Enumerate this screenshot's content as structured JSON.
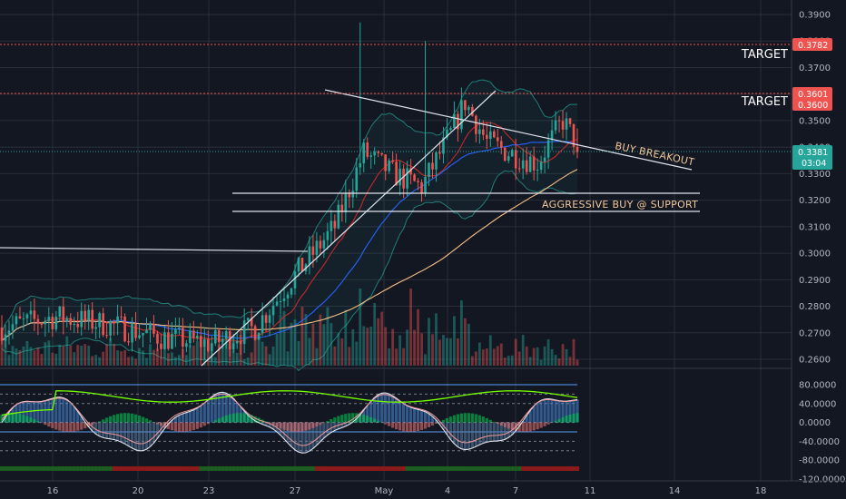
{
  "colors": {
    "background": "#131722",
    "grid": "#2a2e39",
    "up": "#26a69a",
    "down": "#ef5350",
    "target_line": "#ef5350",
    "trend_line": "#ffffff",
    "bollinger": "#26a69a",
    "ema_red": "#c62828",
    "ema_blue": "#2962ff",
    "sma_orange": "#f5c084",
    "annotation_text": "#f0c89a",
    "price_tag_current": "#26a69a"
  },
  "price_axis": {
    "labels": [
      "0.3900",
      "0.3800",
      "0.3700",
      "0.3600",
      "0.3500",
      "0.3400",
      "0.3300",
      "0.3200",
      "0.3100",
      "0.3000",
      "0.2900",
      "0.2800",
      "0.2700",
      "0.2600"
    ]
  },
  "price_tags": {
    "target1": "0.3782",
    "target2_top": "0.3601",
    "target2_bottom": "0.3600",
    "current": "0.3381",
    "countdown": "03:04"
  },
  "oscillator_axis": {
    "labels": [
      "80.0000",
      "40.0000",
      "0.0000",
      "-40.0000",
      "-80.0000",
      "-120.0000"
    ]
  },
  "time_axis": {
    "labels": [
      "16",
      "20",
      "23",
      "27",
      "May",
      "4",
      "7",
      "11",
      "14",
      "18"
    ]
  },
  "annotations": {
    "target1": "TARGET",
    "target2": "TARGET",
    "buy_breakout": "BUY BREAKOUT",
    "aggressive_buy": "AGGRESSIVE BUY @ SUPPORT"
  },
  "chart_data": [
    {
      "type": "candlestick",
      "y_range": [
        0.26,
        0.39
      ],
      "candle_count": 160,
      "overlays": [
        "bollinger bands",
        "red moving average",
        "blue moving average",
        "orange moving average",
        "volume bars"
      ],
      "last_price": 0.3381,
      "targets": [
        0.3782,
        0.36
      ],
      "support_levels": [
        0.3225,
        0.3155
      ],
      "resistance_level": 0.3
    },
    {
      "type": "line",
      "y_range": [
        -120,
        100
      ],
      "levels": [
        80,
        60,
        40,
        0,
        -20,
        -40,
        -60
      ]
    }
  ]
}
